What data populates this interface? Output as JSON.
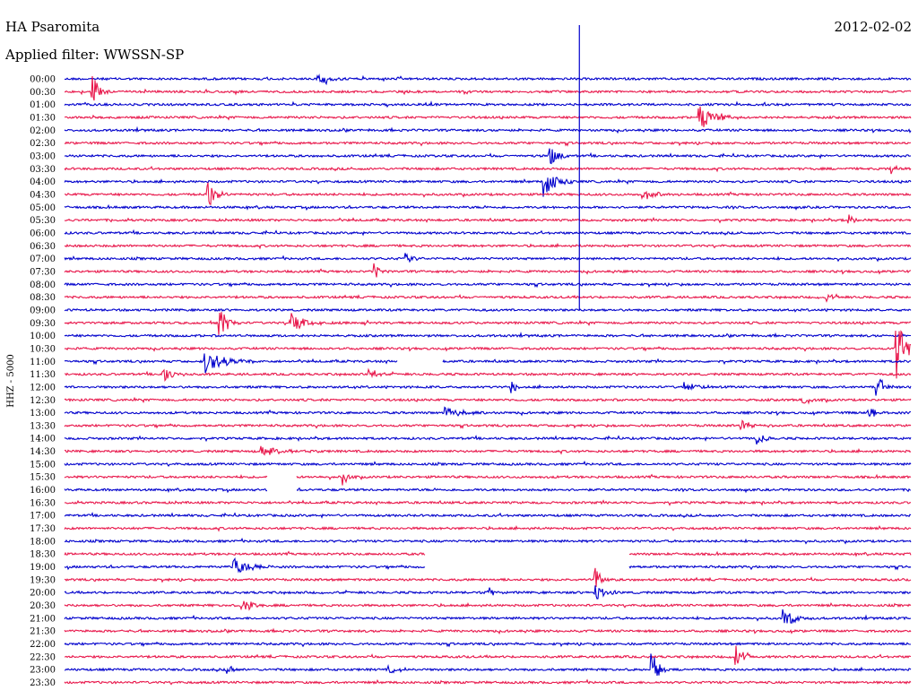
{
  "header": {
    "station": "HA Psaromita",
    "filter": "Applied filter: WWSSN-SP",
    "date": "2012-02-02"
  },
  "chart_data": {
    "type": "line",
    "title": "HA Psaromita",
    "subtitle": "Applied filter: WWSSN-SP",
    "date": "2012-02-02",
    "ylabel": "HHZ - 5000",
    "row_labels": [
      "00:00",
      "00:30",
      "01:00",
      "01:30",
      "02:00",
      "02:30",
      "03:00",
      "03:30",
      "04:00",
      "04:30",
      "05:00",
      "05:30",
      "06:00",
      "06:30",
      "07:00",
      "07:30",
      "08:00",
      "08:30",
      "09:00",
      "09:30",
      "10:00",
      "10:30",
      "11:00",
      "11:30",
      "12:00",
      "12:30",
      "13:00",
      "13:30",
      "14:00",
      "14:30",
      "15:00",
      "15:30",
      "16:00",
      "16:30",
      "17:00",
      "17:30",
      "18:00",
      "18:30",
      "19:00",
      "19:30",
      "20:00",
      "20:30",
      "21:00",
      "21:30",
      "22:00",
      "22:30",
      "23:00",
      "23:30"
    ],
    "row_duration_minutes": 30,
    "series_colors": [
      "#0000cc",
      "#e8174b"
    ],
    "events": [
      {
        "row": "00:00",
        "minute": 9.0,
        "amplitude": 0.6,
        "duration": 1.0
      },
      {
        "row": "00:30",
        "minute": 1.0,
        "amplitude": 1.6,
        "duration": 0.6
      },
      {
        "row": "01:30",
        "minute": 22.5,
        "amplitude": 1.0,
        "duration": 1.6
      },
      {
        "row": "03:00",
        "minute": 17.2,
        "amplitude": 0.8,
        "duration": 0.8
      },
      {
        "row": "03:30",
        "minute": 29.3,
        "amplitude": 0.5,
        "duration": 0.4
      },
      {
        "row": "04:00",
        "minute": 17.0,
        "amplitude": 1.4,
        "duration": 1.0
      },
      {
        "row": "04:30",
        "minute": 5.1,
        "amplitude": 1.0,
        "duration": 0.8
      },
      {
        "row": "04:30",
        "minute": 20.5,
        "amplitude": 0.4,
        "duration": 1.6
      },
      {
        "row": "05:30",
        "minute": 27.8,
        "amplitude": 0.6,
        "duration": 0.6
      },
      {
        "row": "07:00",
        "minute": 12.1,
        "amplitude": 0.5,
        "duration": 0.6
      },
      {
        "row": "07:30",
        "minute": 11.0,
        "amplitude": 0.6,
        "duration": 0.5
      },
      {
        "row": "08:30",
        "minute": 27.0,
        "amplitude": 0.5,
        "duration": 0.6
      },
      {
        "row": "09:30",
        "minute": 5.5,
        "amplitude": 1.3,
        "duration": 0.8
      },
      {
        "row": "09:30",
        "minute": 8.0,
        "amplitude": 0.8,
        "duration": 1.4
      },
      {
        "row": "10:30",
        "minute": 29.5,
        "amplitude": 2.8,
        "duration": 0.8
      },
      {
        "row": "11:00",
        "minute": 5.0,
        "amplitude": 0.9,
        "duration": 2.0
      },
      {
        "row": "11:30",
        "minute": 3.5,
        "amplitude": 0.6,
        "duration": 1.0
      },
      {
        "row": "11:30",
        "minute": 10.8,
        "amplitude": 0.6,
        "duration": 0.6
      },
      {
        "row": "12:00",
        "minute": 15.8,
        "amplitude": 0.6,
        "duration": 0.5
      },
      {
        "row": "12:00",
        "minute": 22.0,
        "amplitude": 0.6,
        "duration": 1.2
      },
      {
        "row": "12:00",
        "minute": 28.8,
        "amplitude": 0.9,
        "duration": 0.8
      },
      {
        "row": "12:30",
        "minute": 26.2,
        "amplitude": 0.5,
        "duration": 0.8
      },
      {
        "row": "13:00",
        "minute": 13.5,
        "amplitude": 0.5,
        "duration": 1.5
      },
      {
        "row": "13:00",
        "minute": 28.5,
        "amplitude": 0.7,
        "duration": 0.6
      },
      {
        "row": "13:30",
        "minute": 24.0,
        "amplitude": 0.4,
        "duration": 1.5
      },
      {
        "row": "14:00",
        "minute": 24.5,
        "amplitude": 0.6,
        "duration": 0.8
      },
      {
        "row": "14:30",
        "minute": 7.0,
        "amplitude": 0.5,
        "duration": 2.0
      },
      {
        "row": "15:30",
        "minute": 9.9,
        "amplitude": 0.7,
        "duration": 0.5
      },
      {
        "row": "19:00",
        "minute": 6.0,
        "amplitude": 0.8,
        "duration": 1.5
      },
      {
        "row": "19:30",
        "minute": 18.8,
        "amplitude": 1.1,
        "duration": 0.6
      },
      {
        "row": "20:00",
        "minute": 15.0,
        "amplitude": 0.6,
        "duration": 0.6
      },
      {
        "row": "20:00",
        "minute": 18.8,
        "amplitude": 1.0,
        "duration": 0.8
      },
      {
        "row": "20:30",
        "minute": 6.3,
        "amplitude": 0.9,
        "duration": 0.8
      },
      {
        "row": "21:00",
        "minute": 25.5,
        "amplitude": 0.8,
        "duration": 1.0
      },
      {
        "row": "22:30",
        "minute": 23.8,
        "amplitude": 1.0,
        "duration": 0.8
      },
      {
        "row": "23:00",
        "minute": 20.8,
        "amplitude": 1.6,
        "duration": 0.8
      },
      {
        "row": "23:00",
        "minute": 5.8,
        "amplitude": 0.5,
        "duration": 0.5
      },
      {
        "row": "23:00",
        "minute": 11.5,
        "amplitude": 0.4,
        "duration": 1.0
      }
    ],
    "large_event": {
      "start_row": "00:00",
      "end_row": "09:00",
      "minute": 18.25
    },
    "data_gaps": [
      {
        "row": "11:00",
        "start_minute": 11.8,
        "end_minute": 13.4
      },
      {
        "row": "15:30",
        "start_minute": 7.2,
        "end_minute": 8.2
      },
      {
        "row": "16:00",
        "start_minute": 7.2,
        "end_minute": 8.2
      },
      {
        "row": "18:30",
        "start_minute": 12.8,
        "end_minute": 20.0
      },
      {
        "row": "19:00",
        "start_minute": 12.8,
        "end_minute": 20.0
      }
    ]
  }
}
